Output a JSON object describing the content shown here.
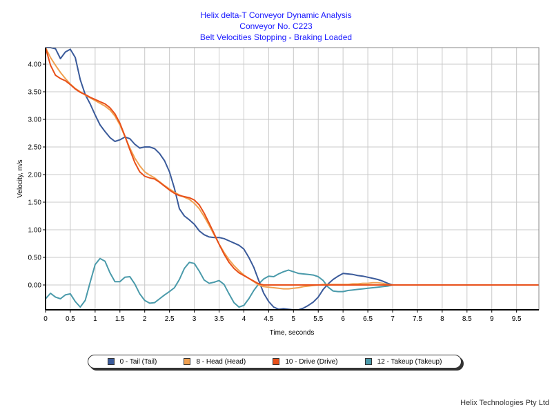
{
  "chart_data": {
    "type": "line",
    "title_lines": [
      "Helix delta-T Conveyor Dynamic Analysis",
      "Conveyor No. C223",
      "Belt Velocities Stopping - Braking Loaded"
    ],
    "xlabel": "Time, seconds",
    "ylabel": "Velocity, m/s",
    "xlim": [
      0,
      9.95
    ],
    "ylim": [
      -0.45,
      4.3
    ],
    "x_ticks": [
      0,
      0.5,
      1,
      1.5,
      2,
      2.5,
      3,
      3.5,
      4,
      4.5,
      5,
      5.5,
      6,
      6.5,
      7,
      7.5,
      8,
      8.5,
      9,
      9.5
    ],
    "x_tick_labels": [
      "0",
      "0.5",
      "1",
      "1.5",
      "2",
      "2.5",
      "3",
      "3.5",
      "4",
      "4.5",
      "5",
      "5.5",
      "6",
      "6.5",
      "7",
      "7.5",
      "8",
      "8.5",
      "9",
      "9.5"
    ],
    "y_ticks": [
      0,
      0.5,
      1,
      1.5,
      2,
      2.5,
      3,
      3.5,
      4
    ],
    "y_tick_labels": [
      "0.00",
      "0.50",
      "1.00",
      "1.50",
      "2.00",
      "2.50",
      "3.00",
      "3.50",
      "4.00"
    ],
    "grid": true,
    "series": [
      {
        "name": "0 - Tail (Tail)",
        "color": "#3a5a9a",
        "x": [
          0,
          0.1,
          0.2,
          0.3,
          0.4,
          0.5,
          0.6,
          0.7,
          0.8,
          0.9,
          1.0,
          1.1,
          1.2,
          1.3,
          1.4,
          1.5,
          1.6,
          1.7,
          1.8,
          1.9,
          2.0,
          2.1,
          2.2,
          2.3,
          2.4,
          2.5,
          2.6,
          2.7,
          2.8,
          2.9,
          3.0,
          3.1,
          3.2,
          3.3,
          3.4,
          3.5,
          3.6,
          3.7,
          3.8,
          3.9,
          4.0,
          4.1,
          4.2,
          4.3,
          4.4,
          4.5,
          4.6,
          4.7,
          4.8,
          4.9,
          5.0,
          5.1,
          5.2,
          5.3,
          5.4,
          5.5,
          5.6,
          5.7,
          5.8,
          5.9,
          6.0,
          6.1,
          6.2,
          6.3,
          6.4,
          6.5,
          6.6,
          6.7,
          6.8,
          6.9,
          7.0,
          7.5,
          8.0,
          8.5,
          9.0,
          9.5,
          9.95
        ],
        "values": [
          4.3,
          4.3,
          4.28,
          4.1,
          4.22,
          4.27,
          4.12,
          3.72,
          3.45,
          3.28,
          3.08,
          2.9,
          2.78,
          2.67,
          2.6,
          2.63,
          2.68,
          2.65,
          2.55,
          2.48,
          2.5,
          2.5,
          2.47,
          2.38,
          2.25,
          2.05,
          1.75,
          1.38,
          1.25,
          1.18,
          1.1,
          0.98,
          0.91,
          0.87,
          0.86,
          0.86,
          0.84,
          0.8,
          0.76,
          0.72,
          0.65,
          0.5,
          0.32,
          0.08,
          -0.15,
          -0.3,
          -0.4,
          -0.44,
          -0.43,
          -0.44,
          -0.45,
          -0.45,
          -0.42,
          -0.37,
          -0.31,
          -0.22,
          -0.08,
          0.02,
          0.1,
          0.16,
          0.21,
          0.2,
          0.19,
          0.17,
          0.16,
          0.14,
          0.12,
          0.1,
          0.07,
          0.03,
          0.0,
          0.0,
          0.0,
          0.0,
          0.0,
          0.0,
          0.0
        ]
      },
      {
        "name": "8 - Head (Head)",
        "color": "#f0a050",
        "x": [
          0,
          0.1,
          0.2,
          0.3,
          0.4,
          0.5,
          0.6,
          0.7,
          0.8,
          0.9,
          1.0,
          1.1,
          1.2,
          1.3,
          1.4,
          1.5,
          1.6,
          1.7,
          1.8,
          1.9,
          2.0,
          2.1,
          2.2,
          2.3,
          2.4,
          2.5,
          2.6,
          2.7,
          2.8,
          2.9,
          3.0,
          3.1,
          3.2,
          3.3,
          3.4,
          3.5,
          3.6,
          3.7,
          3.8,
          3.9,
          4.0,
          4.1,
          4.2,
          4.3,
          4.4,
          4.5,
          4.6,
          4.7,
          4.8,
          4.9,
          5.0,
          5.1,
          5.2,
          5.3,
          5.4,
          5.5,
          5.6,
          5.7,
          5.8,
          5.9,
          6.0,
          6.1,
          6.2,
          6.3,
          6.4,
          6.5,
          6.6,
          6.7,
          6.8,
          6.9,
          7.0,
          7.5,
          8.0,
          8.5,
          9.0,
          9.5,
          9.95
        ],
        "values": [
          4.3,
          4.12,
          3.98,
          3.85,
          3.74,
          3.64,
          3.56,
          3.5,
          3.44,
          3.39,
          3.34,
          3.29,
          3.24,
          3.17,
          3.06,
          2.9,
          2.69,
          2.48,
          2.3,
          2.16,
          2.05,
          1.99,
          1.94,
          1.87,
          1.8,
          1.74,
          1.68,
          1.63,
          1.59,
          1.55,
          1.48,
          1.38,
          1.24,
          1.08,
          0.91,
          0.74,
          0.59,
          0.46,
          0.35,
          0.26,
          0.18,
          0.12,
          0.06,
          0.0,
          -0.03,
          -0.04,
          -0.05,
          -0.06,
          -0.07,
          -0.07,
          -0.06,
          -0.05,
          -0.03,
          -0.02,
          -0.01,
          0.0,
          0.01,
          0.01,
          0.01,
          0.01,
          0.01,
          0.01,
          0.02,
          0.02,
          0.03,
          0.03,
          0.04,
          0.04,
          0.03,
          0.01,
          0.0,
          0.0,
          0.0,
          0.0,
          0.0,
          0.0,
          0.0
        ]
      },
      {
        "name": "10 - Drive (Drive)",
        "color": "#e8501a",
        "x": [
          0,
          0.1,
          0.2,
          0.3,
          0.4,
          0.5,
          0.6,
          0.7,
          0.8,
          0.9,
          1.0,
          1.1,
          1.2,
          1.3,
          1.4,
          1.5,
          1.6,
          1.7,
          1.8,
          1.9,
          2.0,
          2.1,
          2.2,
          2.3,
          2.4,
          2.5,
          2.6,
          2.7,
          2.8,
          2.9,
          3.0,
          3.1,
          3.2,
          3.3,
          3.4,
          3.5,
          3.6,
          3.7,
          3.8,
          3.9,
          4.0,
          4.1,
          4.2,
          4.3,
          4.4,
          4.5,
          4.6,
          4.7,
          4.8,
          4.9,
          5.0,
          5.1,
          5.2,
          5.3,
          5.4,
          5.5,
          5.6,
          5.7,
          5.8,
          5.9,
          6.0,
          6.1,
          6.2,
          6.3,
          6.4,
          6.5,
          6.6,
          6.7,
          6.8,
          6.9,
          7.0,
          7.5,
          8.0,
          8.5,
          9.0,
          9.5,
          9.95
        ],
        "values": [
          4.3,
          3.98,
          3.8,
          3.74,
          3.7,
          3.63,
          3.55,
          3.49,
          3.45,
          3.4,
          3.36,
          3.32,
          3.28,
          3.21,
          3.1,
          2.93,
          2.7,
          2.45,
          2.22,
          2.05,
          1.97,
          1.94,
          1.92,
          1.86,
          1.79,
          1.72,
          1.66,
          1.62,
          1.6,
          1.58,
          1.54,
          1.45,
          1.3,
          1.12,
          0.93,
          0.74,
          0.56,
          0.41,
          0.3,
          0.22,
          0.17,
          0.12,
          0.07,
          0.02,
          0.0,
          0.0,
          0.0,
          0.0,
          0.0,
          0.0,
          0.0,
          0.0,
          0.0,
          0.0,
          0.0,
          0.0,
          0.0,
          0.0,
          0.0,
          0.0,
          0.0,
          0.0,
          0.0,
          0.0,
          0.0,
          0.0,
          0.0,
          0.0,
          0.0,
          0.0,
          0.0,
          0.0,
          0.0,
          0.0,
          0.0,
          0.0,
          0.0
        ]
      },
      {
        "name": "12 - Takeup (Takeup)",
        "color": "#4a9aaa",
        "x": [
          0,
          0.1,
          0.2,
          0.3,
          0.4,
          0.5,
          0.6,
          0.7,
          0.8,
          0.9,
          1.0,
          1.1,
          1.2,
          1.3,
          1.4,
          1.5,
          1.6,
          1.7,
          1.8,
          1.9,
          2.0,
          2.1,
          2.2,
          2.3,
          2.4,
          2.5,
          2.6,
          2.7,
          2.8,
          2.9,
          3.0,
          3.1,
          3.2,
          3.3,
          3.4,
          3.5,
          3.6,
          3.7,
          3.8,
          3.9,
          4.0,
          4.1,
          4.2,
          4.3,
          4.4,
          4.5,
          4.6,
          4.7,
          4.8,
          4.9,
          5.0,
          5.1,
          5.2,
          5.3,
          5.4,
          5.5,
          5.6,
          5.7,
          5.8,
          5.9,
          6.0,
          6.1,
          6.2,
          6.3,
          6.4,
          6.5,
          6.6,
          6.7,
          6.8,
          6.9,
          7.0,
          7.5,
          8.0,
          8.5,
          9.0,
          9.5,
          9.95
        ],
        "values": [
          -0.25,
          -0.15,
          -0.22,
          -0.25,
          -0.18,
          -0.16,
          -0.3,
          -0.4,
          -0.28,
          0.05,
          0.37,
          0.48,
          0.43,
          0.22,
          0.06,
          0.06,
          0.14,
          0.15,
          0.02,
          -0.16,
          -0.28,
          -0.33,
          -0.32,
          -0.25,
          -0.18,
          -0.12,
          -0.05,
          0.1,
          0.3,
          0.41,
          0.39,
          0.25,
          0.09,
          0.03,
          0.05,
          0.08,
          0.01,
          -0.16,
          -0.32,
          -0.4,
          -0.37,
          -0.25,
          -0.1,
          0.02,
          0.11,
          0.16,
          0.15,
          0.2,
          0.24,
          0.27,
          0.24,
          0.21,
          0.2,
          0.19,
          0.18,
          0.15,
          0.08,
          -0.04,
          -0.11,
          -0.12,
          -0.12,
          -0.1,
          -0.09,
          -0.08,
          -0.07,
          -0.06,
          -0.05,
          -0.04,
          -0.03,
          -0.02,
          0.0,
          0.0,
          0.0,
          0.0,
          0.0,
          0.0,
          0.0
        ]
      }
    ]
  },
  "footer": {
    "text": "Helix Technologies Pty Ltd"
  }
}
